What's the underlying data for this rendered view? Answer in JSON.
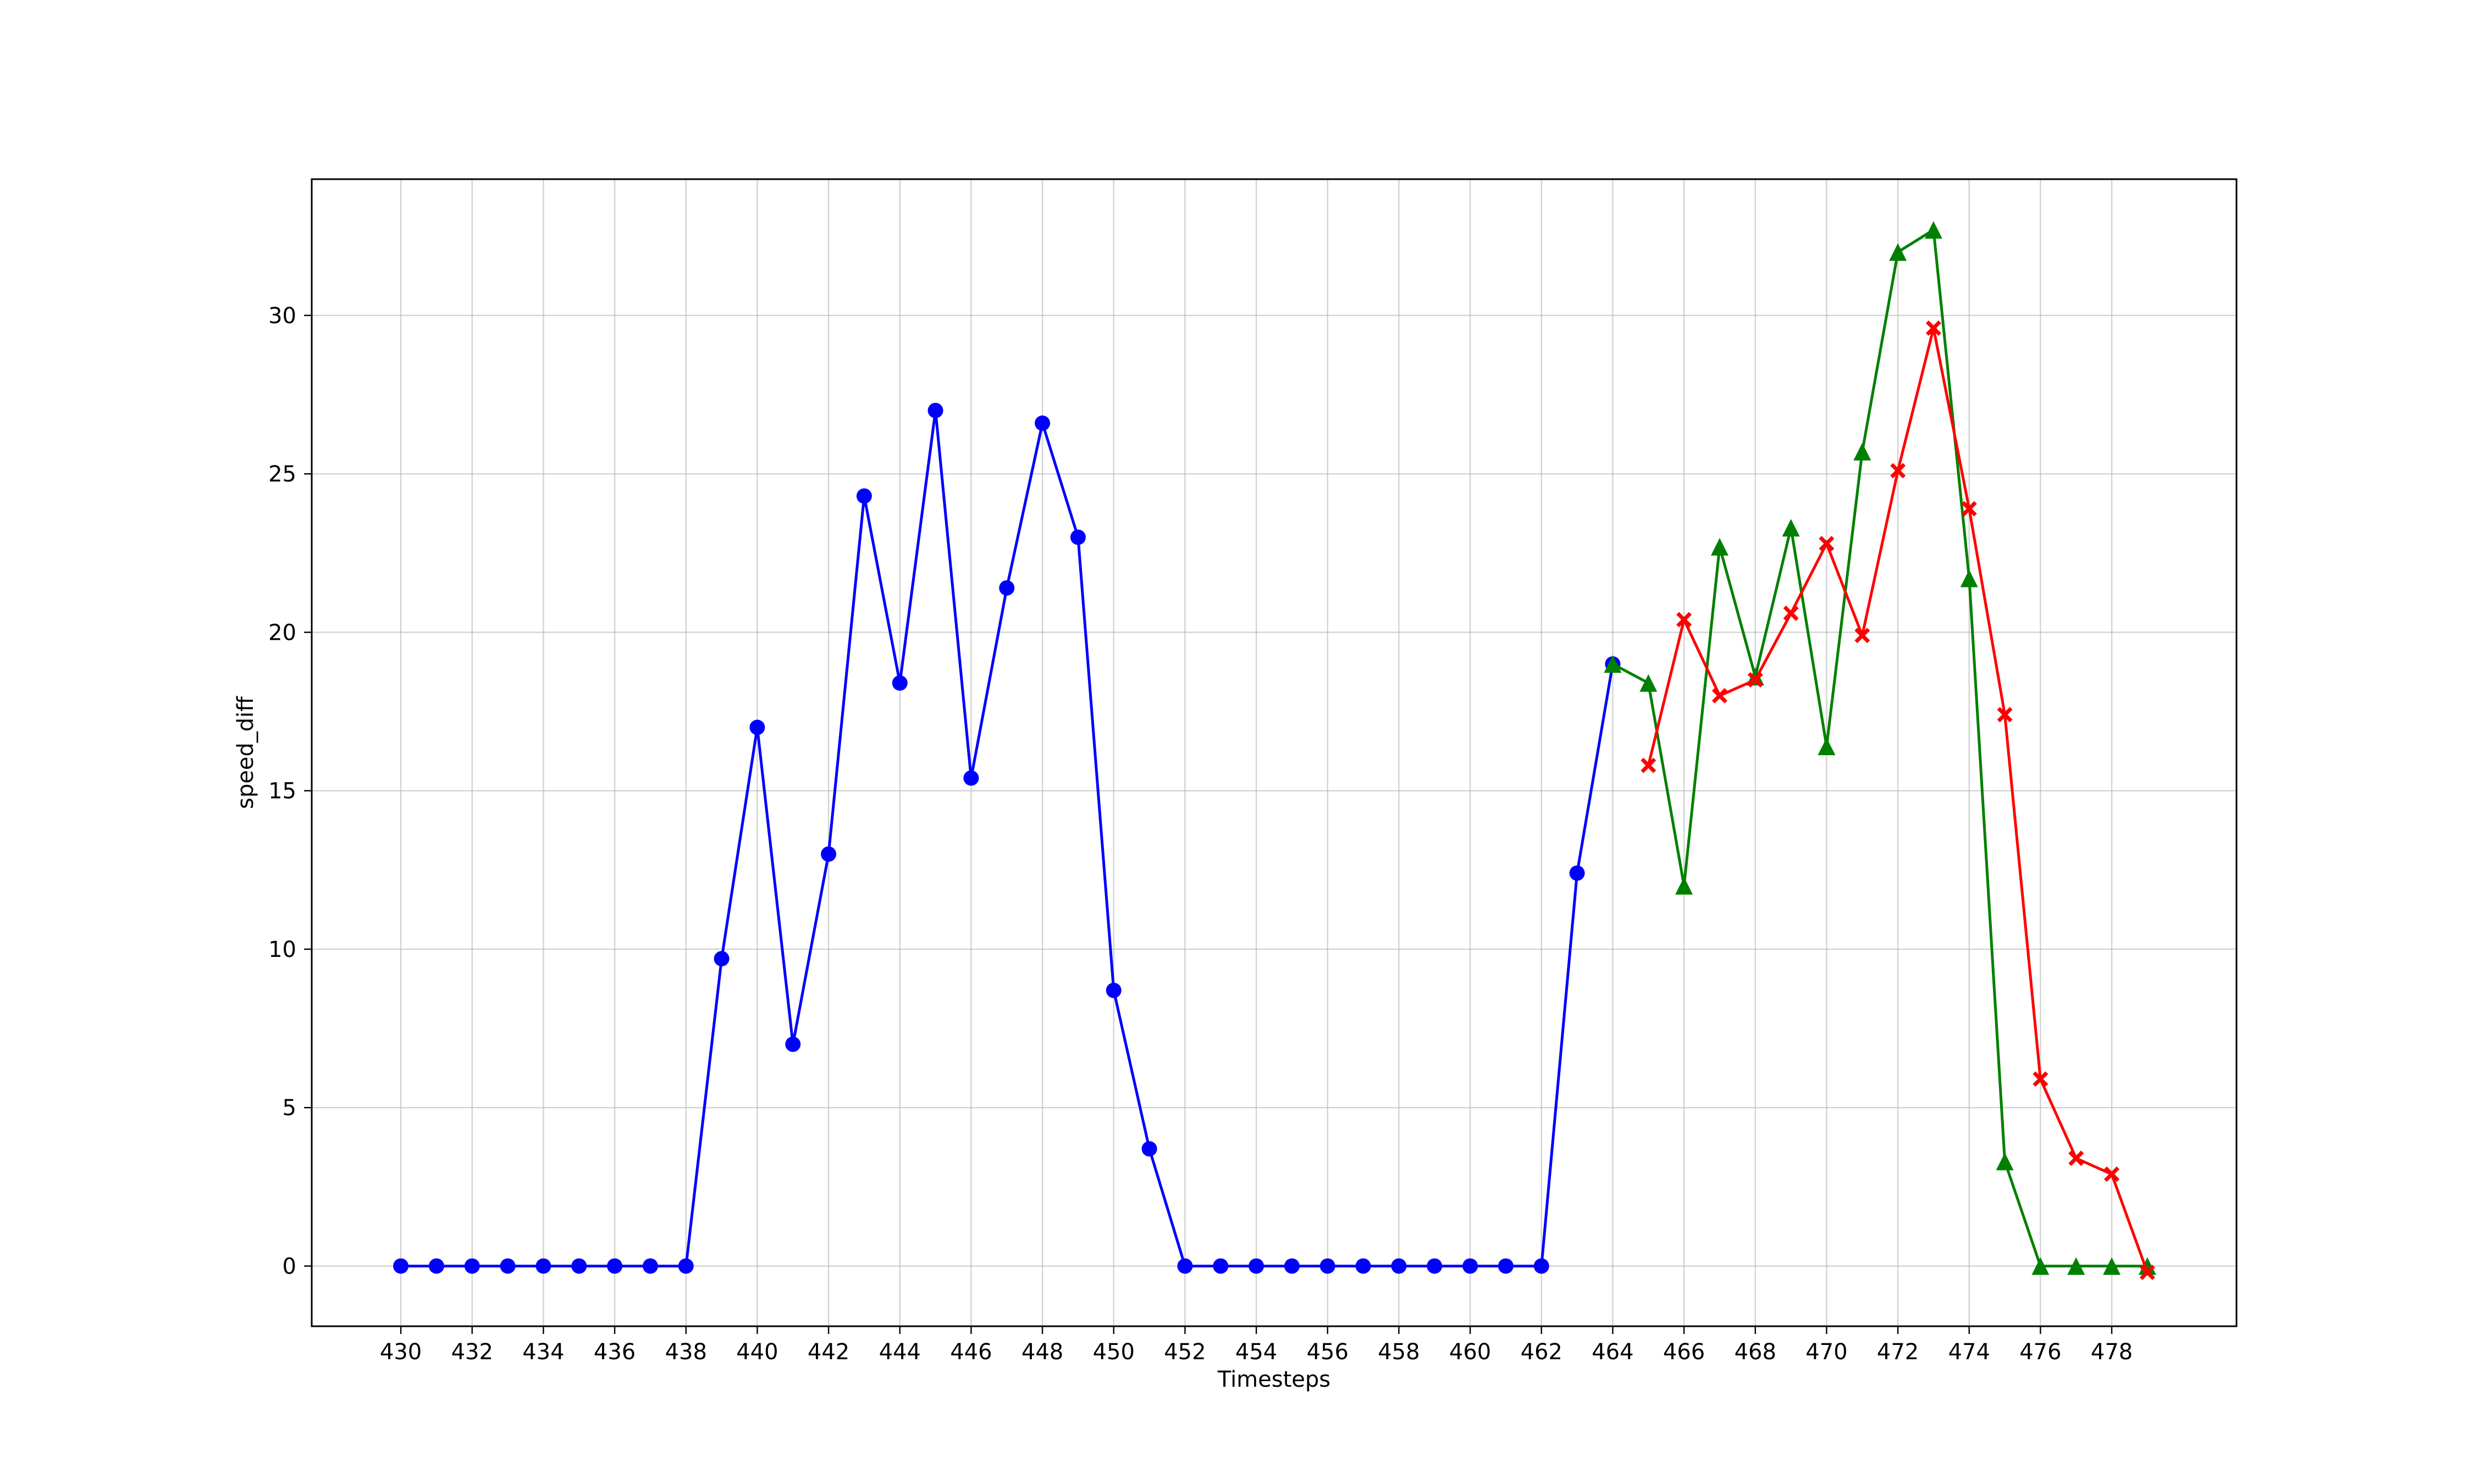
{
  "chart_data": {
    "type": "line",
    "title": "",
    "xlabel": "Timesteps",
    "ylabel": "speed_diff",
    "xlim": [
      427.5,
      481.5
    ],
    "ylim": [
      -1.9,
      34.3
    ],
    "x_ticks": [
      430,
      432,
      434,
      436,
      438,
      440,
      442,
      444,
      446,
      448,
      450,
      452,
      454,
      456,
      458,
      460,
      462,
      464,
      466,
      468,
      470,
      472,
      474,
      476,
      478
    ],
    "y_ticks": [
      0,
      5,
      10,
      15,
      20,
      25,
      30
    ],
    "grid": true,
    "legend": "none",
    "series": [
      {
        "color": "#0000ff",
        "marker": "circle",
        "x": [
          430,
          431,
          432,
          433,
          434,
          435,
          436,
          437,
          438,
          439,
          440,
          441,
          442,
          443,
          444,
          445,
          446,
          447,
          448,
          449,
          450,
          451,
          452,
          453,
          454,
          455,
          456,
          457,
          458,
          459,
          460,
          461,
          462,
          463,
          464
        ],
        "y": [
          0,
          0,
          0,
          0,
          0,
          0,
          0,
          0,
          0,
          9.7,
          17.0,
          7.0,
          13.0,
          24.3,
          18.4,
          27.0,
          15.4,
          21.4,
          26.6,
          23.0,
          8.7,
          3.7,
          0,
          0,
          0,
          0,
          0,
          0,
          0,
          0,
          0,
          0,
          0,
          12.4,
          19.0
        ]
      },
      {
        "color": "#008000",
        "marker": "triangle",
        "x": [
          464,
          465,
          466,
          467,
          468,
          469,
          470,
          471,
          472,
          473,
          474,
          475,
          476,
          477,
          478,
          479
        ],
        "y": [
          19.0,
          18.4,
          12.0,
          22.7,
          18.6,
          23.3,
          16.4,
          25.7,
          32.0,
          32.7,
          21.7,
          3.3,
          0,
          0,
          0,
          0
        ]
      },
      {
        "color": "#ff0000",
        "marker": "x-filled",
        "x": [
          465,
          466,
          467,
          468,
          469,
          470,
          471,
          472,
          473,
          474,
          475,
          476,
          477,
          478,
          479
        ],
        "y": [
          15.8,
          20.4,
          18.0,
          18.5,
          20.6,
          22.8,
          19.9,
          25.1,
          29.6,
          23.9,
          17.4,
          5.9,
          3.4,
          2.9,
          -0.2
        ]
      }
    ]
  }
}
